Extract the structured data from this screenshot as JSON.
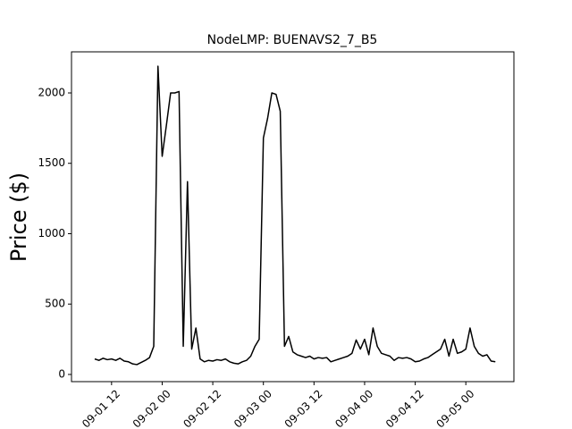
{
  "chart_data": {
    "type": "line",
    "title": "NodeLMP: BUENAVS2_7_B5",
    "y_label": "Price ($)",
    "color": "#000000",
    "x": [
      "09-01 08",
      "09-01 09",
      "09-01 10",
      "09-01 11",
      "09-01 12",
      "09-01 13",
      "09-01 14",
      "09-01 15",
      "09-01 16",
      "09-01 17",
      "09-01 18",
      "09-01 19",
      "09-01 20",
      "09-01 21",
      "09-01 22",
      "09-01 23",
      "09-02 00",
      "09-02 01",
      "09-02 02",
      "09-02 03",
      "09-02 04",
      "09-02 05",
      "09-02 06",
      "09-02 07",
      "09-02 08",
      "09-02 09",
      "09-02 10",
      "09-02 11",
      "09-02 12",
      "09-02 13",
      "09-02 14",
      "09-02 15",
      "09-02 16",
      "09-02 17",
      "09-02 18",
      "09-02 19",
      "09-02 20",
      "09-02 21",
      "09-02 22",
      "09-02 23",
      "09-03 00",
      "09-03 01",
      "09-03 02",
      "09-03 03",
      "09-03 04",
      "09-03 05",
      "09-03 06",
      "09-03 07",
      "09-03 08",
      "09-03 09",
      "09-03 10",
      "09-03 11",
      "09-03 12",
      "09-03 13",
      "09-03 14",
      "09-03 15",
      "09-03 16",
      "09-03 17",
      "09-03 18",
      "09-03 19",
      "09-03 20",
      "09-03 21",
      "09-03 22",
      "09-03 23",
      "09-04 00",
      "09-04 01",
      "09-04 02",
      "09-04 03",
      "09-04 04",
      "09-04 05",
      "09-04 06",
      "09-04 07",
      "09-04 08",
      "09-04 09",
      "09-04 10",
      "09-04 11",
      "09-04 12",
      "09-04 13",
      "09-04 14",
      "09-04 15",
      "09-04 16",
      "09-04 17",
      "09-04 18",
      "09-04 19",
      "09-04 20",
      "09-04 21",
      "09-04 22",
      "09-04 23",
      "09-05 00",
      "09-05 01",
      "09-05 02",
      "09-05 03",
      "09-05 04",
      "09-05 05",
      "09-05 06",
      "09-05 07"
    ],
    "values": [
      110,
      100,
      115,
      105,
      110,
      100,
      115,
      95,
      90,
      75,
      70,
      85,
      100,
      120,
      200,
      2190,
      1550,
      1770,
      2000,
      2000,
      2010,
      200,
      1370,
      180,
      330,
      110,
      90,
      100,
      95,
      105,
      100,
      110,
      90,
      80,
      75,
      90,
      100,
      130,
      200,
      250,
      1680,
      1820,
      2000,
      1990,
      1870,
      200,
      270,
      160,
      140,
      130,
      120,
      130,
      110,
      120,
      115,
      120,
      90,
      100,
      110,
      120,
      130,
      150,
      245,
      180,
      250,
      140,
      330,
      200,
      150,
      140,
      130,
      100,
      120,
      115,
      120,
      110,
      90,
      95,
      110,
      120,
      140,
      160,
      180,
      250,
      130,
      250,
      150,
      160,
      180,
      330,
      200,
      150,
      130,
      140,
      95,
      90
    ],
    "xlim": [
      "09-01 02:30",
      "09-05 11:24"
    ],
    "xticks": [
      "09-01 12",
      "09-02 00",
      "09-02 12",
      "09-03 00",
      "09-03 12",
      "09-04 00",
      "09-04 12",
      "09-05 00"
    ],
    "ylim": [
      -51,
      2292
    ],
    "yticks": [
      0,
      500,
      1000,
      1500,
      2000
    ]
  }
}
